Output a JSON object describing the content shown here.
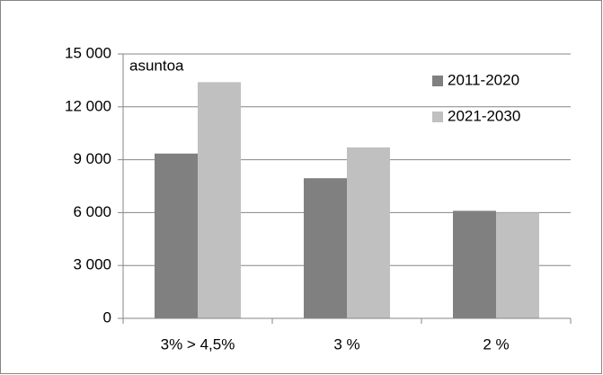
{
  "chart_data": {
    "type": "bar",
    "annotation": "asuntoa",
    "categories": [
      "3% > 4,5%",
      "3 %",
      "2 %"
    ],
    "series": [
      {
        "name": "2011-2020",
        "color": "#808080",
        "values": [
          9350,
          7950,
          6100
        ]
      },
      {
        "name": "2021-2030",
        "color": "#c0c0c0",
        "values": [
          13400,
          9700,
          6000
        ]
      }
    ],
    "ylim": [
      0,
      15000
    ],
    "yticks": [
      0,
      {
        "value": 3000,
        "label": "3 000"
      },
      {
        "value": 6000,
        "label": "6 000"
      },
      {
        "value": 9000,
        "label": "9 000"
      },
      {
        "value": 12000,
        "label": "12 000"
      },
      {
        "value": 15000,
        "label": "15 000"
      }
    ],
    "grid": true,
    "legend": "top-right"
  }
}
